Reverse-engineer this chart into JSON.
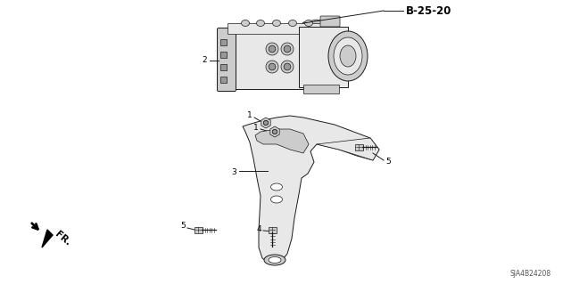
{
  "bg_color": "#ffffff",
  "fig_width": 6.4,
  "fig_height": 3.19,
  "dpi": 100,
  "label_B2520": "B-25-20",
  "label_2": "2",
  "label_1a": "1",
  "label_1b": "1",
  "label_3": "3",
  "label_4": "4",
  "label_5a": "5",
  "label_5b": "5",
  "label_5c": "5",
  "label_FR": "FR.",
  "label_part_num": "SJA4B24208",
  "line_color": "#1a1a1a",
  "fill_light": "#e8e8e8",
  "fill_mid": "#cccccc",
  "fill_dark": "#999999",
  "text_color": "#000000",
  "font_size_label": 6.5,
  "font_size_partnum": 5.5,
  "font_size_code": 8.5
}
